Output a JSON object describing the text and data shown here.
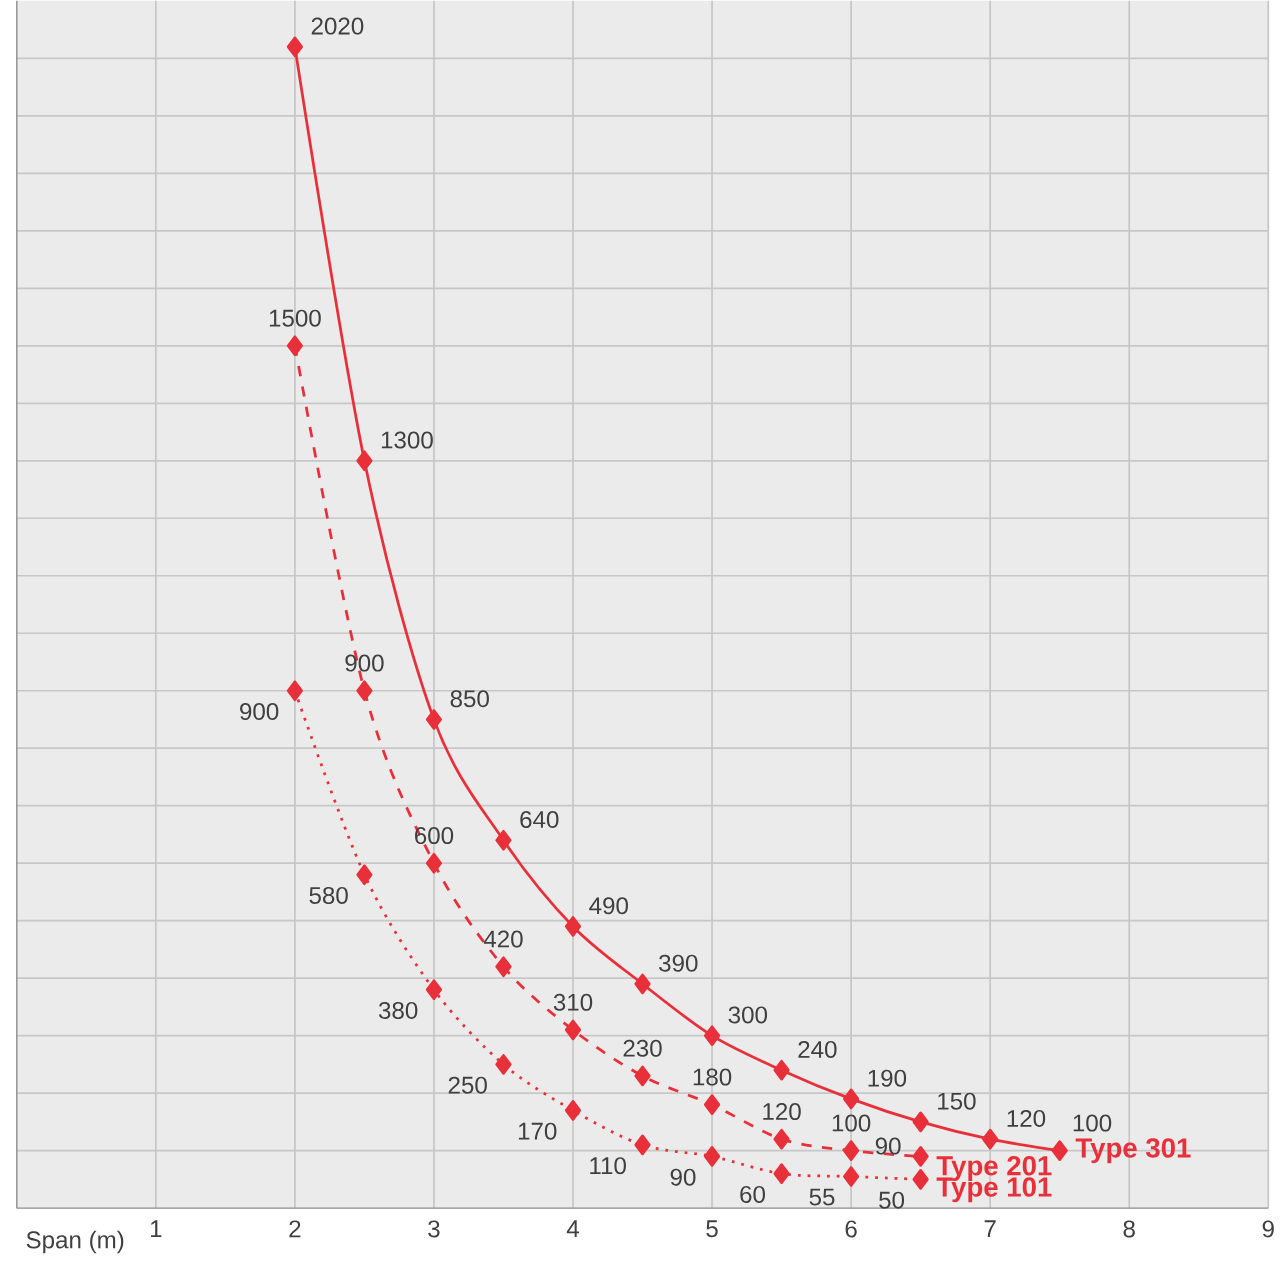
{
  "chart_data": {
    "type": "line",
    "xlabel": "Span (m)",
    "xlim": [
      0,
      9
    ],
    "xticks": [
      1,
      2,
      3,
      4,
      5,
      6,
      7,
      8,
      9
    ],
    "ylim": [
      0,
      2100
    ],
    "yticks": [
      {
        "value": 100,
        "label": null
      },
      {
        "value": 200,
        "label": null
      },
      {
        "value": 300,
        "label": null
      },
      {
        "value": 400,
        "label": null
      },
      {
        "value": 500,
        "label": null
      },
      {
        "value": 600,
        "label": null
      },
      {
        "value": 700,
        "label": null
      },
      {
        "value": 800,
        "label": null
      },
      {
        "value": 900,
        "label": null
      },
      {
        "value": 1000,
        "label": null
      },
      {
        "value": 1100,
        "label": null
      },
      {
        "value": 1200,
        "label": null
      },
      {
        "value": 1300,
        "label": null
      },
      {
        "value": 1400,
        "label": null
      },
      {
        "value": 1500,
        "label": null
      },
      {
        "value": 1600,
        "label": null
      },
      {
        "value": 1700,
        "label": null
      },
      {
        "value": 1800,
        "label": null
      },
      {
        "value": 1900,
        "label": null
      },
      {
        "value": 2000,
        "label": null
      }
    ],
    "tick_labels": "x",
    "grid": true,
    "legend": false,
    "marker": "diamond",
    "data_labels": true,
    "series": [
      {
        "name": "Type 301",
        "color": "#e8303a",
        "line_style": "solid",
        "x": [
          2,
          2.5,
          3,
          3.5,
          4,
          4.5,
          5,
          5.5,
          6,
          6.5,
          7,
          7.5
        ],
        "values": [
          2020,
          1300,
          850,
          640,
          490,
          390,
          300,
          240,
          190,
          150,
          120,
          100
        ]
      },
      {
        "name": "Type 201",
        "color": "#e8303a",
        "line_style": "dashed",
        "x": [
          2,
          2.5,
          3,
          3.5,
          4,
          4.5,
          5,
          5.5,
          6,
          6.5
        ],
        "values": [
          1500,
          900,
          600,
          420,
          310,
          230,
          180,
          120,
          100,
          90
        ]
      },
      {
        "name": "Type 101",
        "color": "#e8303a",
        "line_style": "dotted",
        "x": [
          2,
          2.5,
          3,
          3.5,
          4,
          4.5,
          5,
          5.5,
          6,
          6.5
        ],
        "values": [
          900,
          580,
          380,
          250,
          170,
          110,
          90,
          60,
          55,
          50
        ]
      }
    ]
  }
}
